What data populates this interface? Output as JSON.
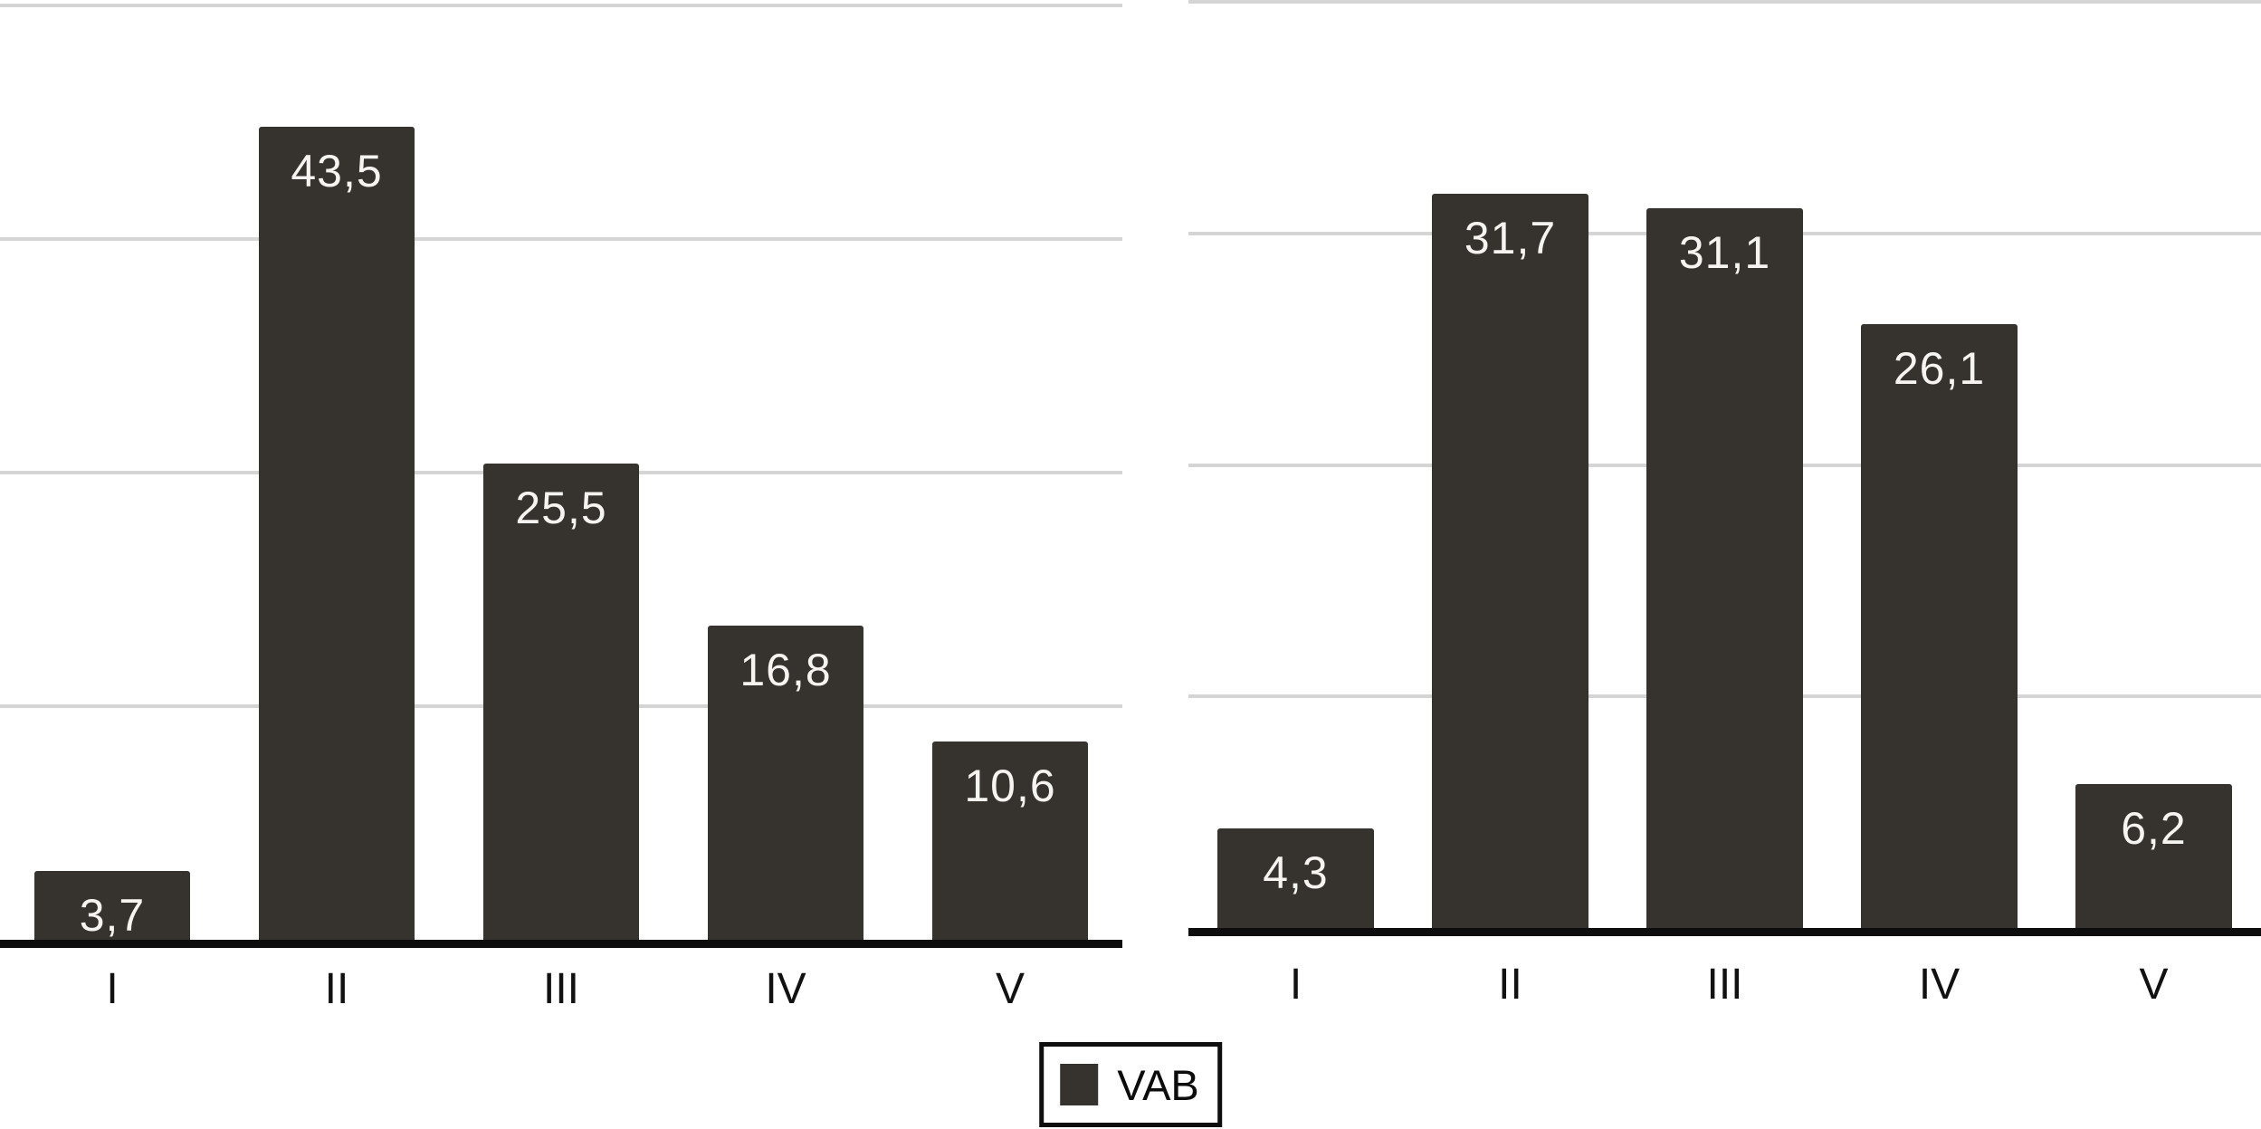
{
  "figure": {
    "background": "#ffffff",
    "colors": {
      "bar": "#36322d",
      "gridline": "#d5d5d5",
      "axis": "#0d0d0d",
      "value_label": "#f5f4f1",
      "category_label": "#111111",
      "background": "#ffffff"
    },
    "legend": {
      "label": "VAB",
      "position": "bottom-center"
    }
  },
  "chart_data": [
    {
      "type": "bar",
      "title": "",
      "xlabel": "",
      "ylabel": "",
      "categories": [
        "I",
        "II",
        "III",
        "IV",
        "V"
      ],
      "series": [
        {
          "name": "VAB",
          "values": [
            3.7,
            43.5,
            25.5,
            16.8,
            10.6
          ]
        }
      ],
      "value_labels": [
        "3,7",
        "43,5",
        "25,5",
        "16,8",
        "10,6"
      ],
      "ylim": [
        0,
        50
      ],
      "gridline_values": [
        12.5,
        25,
        37.5,
        50
      ],
      "grid": true,
      "y_axis_tick_labels_visible": false,
      "legend_position": "bottom-center"
    },
    {
      "type": "bar",
      "title": "",
      "xlabel": "",
      "ylabel": "",
      "categories": [
        "I",
        "II",
        "III",
        "IV",
        "V"
      ],
      "series": [
        {
          "name": "VAB",
          "values": [
            4.3,
            31.7,
            31.1,
            26.1,
            6.2
          ]
        }
      ],
      "value_labels": [
        "4,3",
        "31,7",
        "31,1",
        "26,1",
        "6,2"
      ],
      "ylim": [
        0,
        40
      ],
      "gridline_values": [
        10,
        20,
        30,
        40
      ],
      "grid": true,
      "y_axis_tick_labels_visible": false,
      "legend_position": "bottom-center"
    }
  ]
}
